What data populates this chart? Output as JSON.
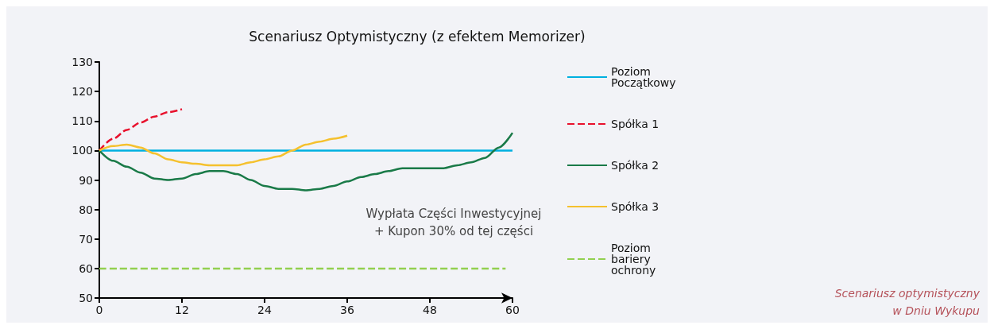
{
  "chart_data": {
    "type": "line",
    "title": "Scenariusz Optymistyczny (z efektem Memorizer)",
    "xlim": [
      0,
      60
    ],
    "xticks": [
      0,
      12,
      24,
      36,
      48,
      60
    ],
    "ylim": [
      50,
      130
    ],
    "yticks": [
      50,
      60,
      70,
      80,
      90,
      100,
      110,
      120,
      130
    ],
    "grid": false,
    "legend": "right",
    "marker": "none",
    "series": [
      {
        "name": "Poziom Początkowy",
        "color": "#00b0e0",
        "line_style": "solid",
        "x": [
          0,
          60
        ],
        "values": [
          100,
          100
        ]
      },
      {
        "name": "Spółka 1",
        "color": "#e8112d",
        "line_style": "dashed",
        "x": [
          0,
          2,
          4,
          6,
          8,
          10,
          12
        ],
        "values": [
          100,
          104,
          107,
          109.5,
          111.5,
          113,
          114
        ]
      },
      {
        "name": "Spółka 2",
        "color": "#1a7a48",
        "line_style": "solid",
        "x": [
          0,
          2,
          4,
          6,
          8,
          10,
          12,
          14,
          16,
          18,
          20,
          22,
          24,
          26,
          28,
          30,
          32,
          34,
          36,
          38,
          40,
          42,
          44,
          46,
          48,
          50,
          52,
          54,
          56,
          58,
          60
        ],
        "values": [
          100,
          96.5,
          94.5,
          92.5,
          90.5,
          90,
          90.5,
          92,
          93,
          93,
          92,
          90,
          88,
          87,
          87,
          86.5,
          87,
          88,
          89.5,
          91,
          92,
          93,
          94,
          94,
          94,
          94,
          95,
          96,
          97.5,
          101,
          106
        ]
      },
      {
        "name": "Spółka 3",
        "color": "#f5c12e",
        "line_style": "solid",
        "x": [
          0,
          2,
          4,
          6,
          8,
          10,
          12,
          14,
          16,
          18,
          20,
          22,
          24,
          26,
          28,
          30,
          32,
          34,
          36
        ],
        "values": [
          100,
          101.5,
          102,
          101,
          99,
          97,
          96,
          95.5,
          95,
          95,
          95,
          96,
          97,
          98,
          100,
          102,
          103,
          104,
          105
        ]
      },
      {
        "name": "Poziom bariery ochrony",
        "color": "#92d050",
        "line_style": "dashed",
        "x": [
          0,
          59
        ],
        "values": [
          60,
          60
        ]
      }
    ],
    "annotations": [
      "Wypłata Części Inwestycyjnej\n+ Kupon 30% od tej części",
      "Scenariusz optymistyczny\nw Dniu Wykupu"
    ]
  }
}
